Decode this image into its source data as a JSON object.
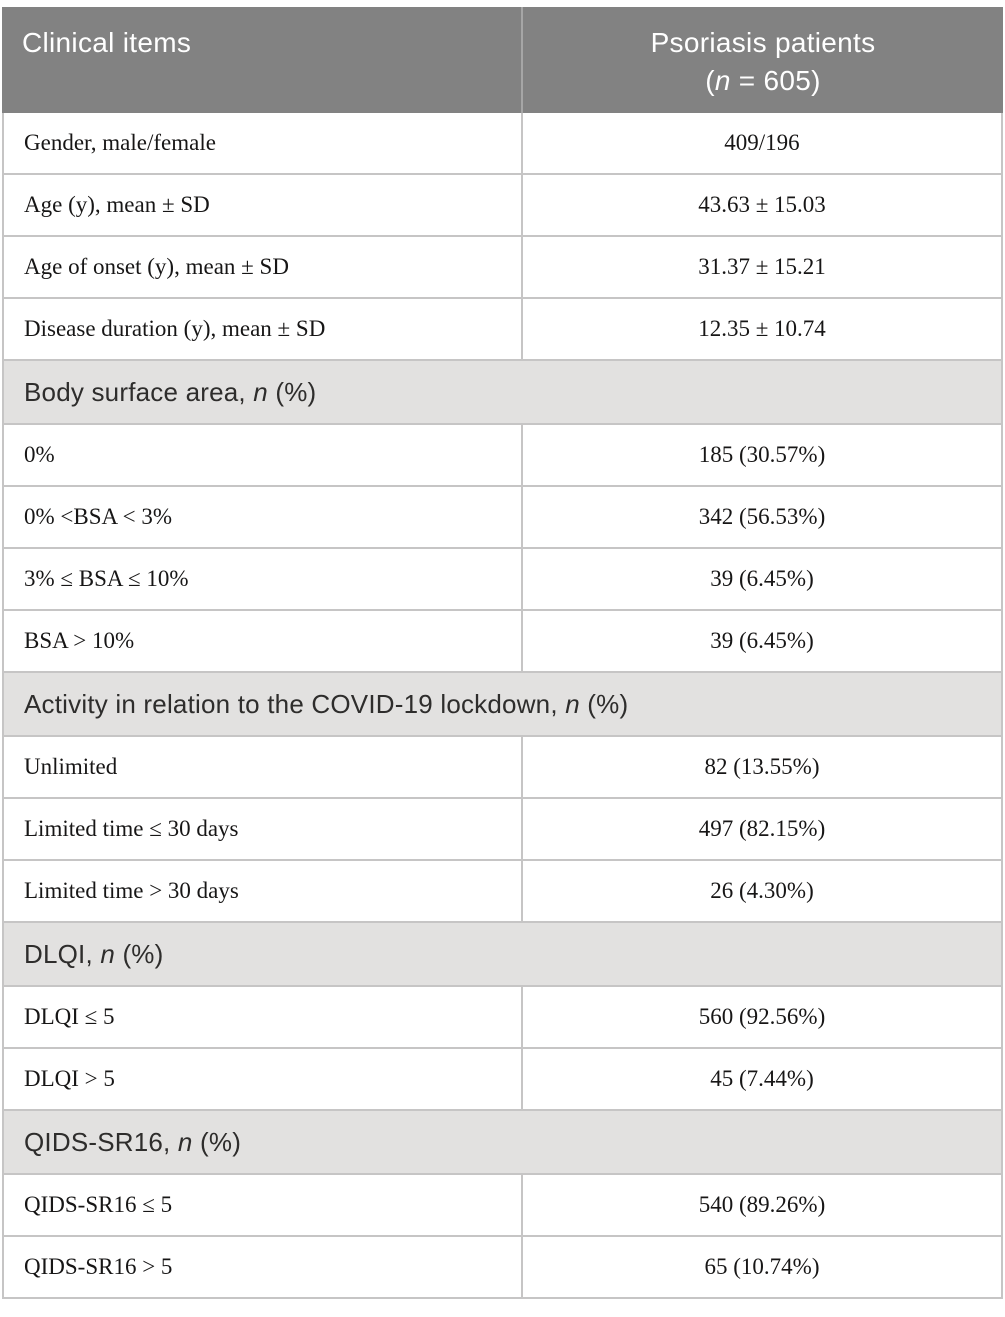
{
  "colors": {
    "header_bg": "#828282",
    "header_text": "#ffffff",
    "section_bg": "#e2e1e0",
    "section_text": "#2e2d2c",
    "body_text": "#171616",
    "border": "#c6c5c5"
  },
  "header": {
    "col1": "Clinical items",
    "col2_line1": "Psoriasis patients",
    "col2_open": "(",
    "col2_n": "n",
    "col2_rest": " = 605)"
  },
  "groups": [
    {
      "rows": [
        {
          "label": "Gender, male/female",
          "value": "409/196"
        },
        {
          "label": "Age (y), mean ± SD",
          "value": "43.63 ± 15.03"
        },
        {
          "label": "Age of onset (y), mean ± SD",
          "value": "31.37 ± 15.21"
        },
        {
          "label": "Disease duration (y), mean ± SD",
          "value": "12.35 ± 10.74"
        }
      ]
    },
    {
      "title_pre": "Body surface area, ",
      "title_n": "n",
      "title_post": " (%)",
      "rows": [
        {
          "label": "0%",
          "value": "185 (30.57%)"
        },
        {
          "label": "0% <BSA < 3%",
          "value": "342 (56.53%)"
        },
        {
          "label": "3% ≤ BSA ≤ 10%",
          "value": "39 (6.45%)"
        },
        {
          "label": "BSA > 10%",
          "value": "39 (6.45%)"
        }
      ]
    },
    {
      "title_pre": "Activity in relation to the COVID-19 lockdown, ",
      "title_n": "n",
      "title_post": " (%)",
      "rows": [
        {
          "label": "Unlimited",
          "value": "82 (13.55%)"
        },
        {
          "label": "Limited time ≤ 30 days",
          "value": "497 (82.15%)"
        },
        {
          "label": "Limited time > 30 days",
          "value": "26 (4.30%)"
        }
      ]
    },
    {
      "title_pre": "DLQI, ",
      "title_n": "n",
      "title_post": " (%)",
      "rows": [
        {
          "label": "DLQI ≤ 5",
          "value": "560 (92.56%)"
        },
        {
          "label": "DLQI > 5",
          "value": "45 (7.44%)"
        }
      ]
    },
    {
      "title_pre": "QIDS-SR16, ",
      "title_n": "n",
      "title_post": " (%)",
      "rows": [
        {
          "label": "QIDS-SR16 ≤ 5",
          "value": "540 (89.26%)"
        },
        {
          "label": "QIDS-SR16 > 5",
          "value": "65 (10.74%)"
        }
      ]
    }
  ]
}
